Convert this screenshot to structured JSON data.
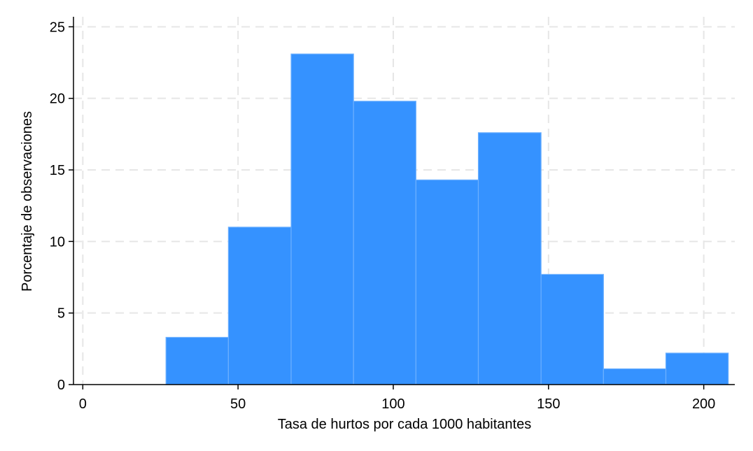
{
  "chart_data": {
    "type": "bar",
    "subtype": "histogram",
    "title": "",
    "xlabel": "Tasa de hurtos por cada 1000 habitantes",
    "ylabel": "Porcentaje de observaciones",
    "xlim": [
      -3,
      210
    ],
    "ylim": [
      0,
      25.7
    ],
    "xticks": [
      0,
      50,
      100,
      150,
      200
    ],
    "xtick_labels": [
      "0",
      "50",
      "100",
      "150",
      "200"
    ],
    "yticks": [
      0,
      5,
      10,
      15,
      20,
      25
    ],
    "ytick_labels": [
      "0",
      "5",
      "10",
      "15",
      "20",
      "25"
    ],
    "grid": true,
    "legend": "none",
    "bins": [
      {
        "x0": 26.8,
        "x1": 46.9,
        "value": 3.3
      },
      {
        "x0": 46.9,
        "x1": 67.1,
        "value": 11.0
      },
      {
        "x0": 67.1,
        "x1": 87.2,
        "value": 23.1
      },
      {
        "x0": 87.2,
        "x1": 107.3,
        "value": 19.8
      },
      {
        "x0": 107.3,
        "x1": 127.4,
        "value": 14.3
      },
      {
        "x0": 127.4,
        "x1": 147.6,
        "value": 17.6
      },
      {
        "x0": 147.6,
        "x1": 167.7,
        "value": 7.7
      },
      {
        "x0": 167.7,
        "x1": 187.8,
        "value": 1.1
      },
      {
        "x0": 187.8,
        "x1": 207.9,
        "value": 2.2
      }
    ],
    "colors": {
      "bar_fill": "#3592FF",
      "bar_stroke": "#6CB0FF",
      "grid": "#E6E6E6",
      "axis": "#000000"
    }
  }
}
